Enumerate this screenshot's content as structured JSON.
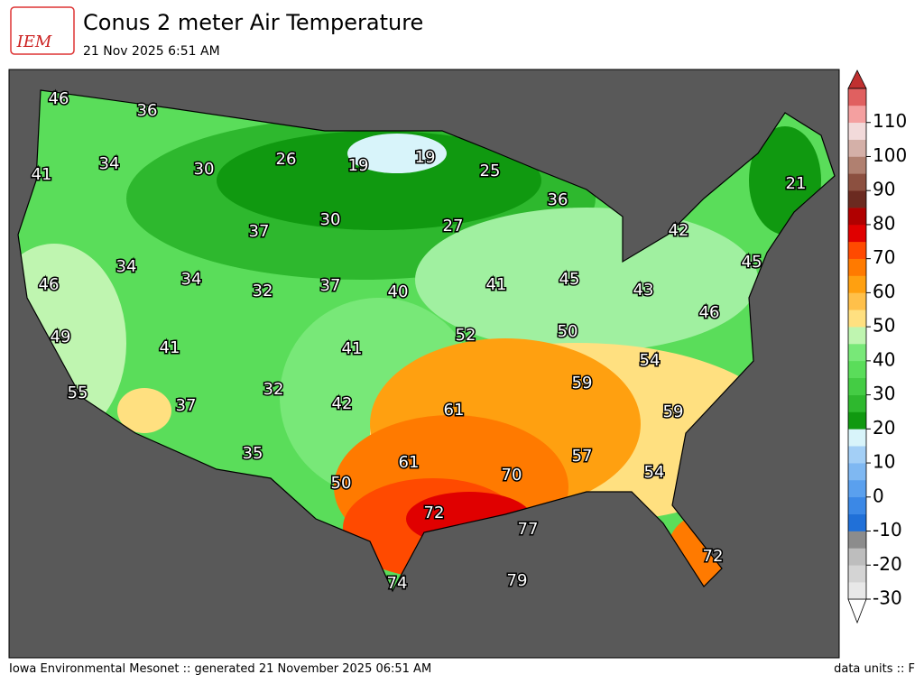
{
  "header": {
    "logo_text": "IEM",
    "title": "Conus 2 meter Air Temperature",
    "subtitle": "21 Nov 2025 6:51 AM"
  },
  "map": {
    "labels": [
      "46",
      "36",
      "41",
      "34",
      "30",
      "26",
      "19",
      "19",
      "25",
      "36",
      "21",
      "37",
      "30",
      "27",
      "42",
      "34",
      "34",
      "46",
      "32",
      "37",
      "40",
      "41",
      "45",
      "43",
      "45",
      "46",
      "49",
      "52",
      "50",
      "41",
      "41",
      "54",
      "55",
      "37",
      "32",
      "42",
      "61",
      "59",
      "59",
      "35",
      "61",
      "57",
      "54",
      "50",
      "70",
      "72",
      "77",
      "72",
      "74",
      "79"
    ]
  },
  "colorbar": {
    "lim": [
      -30,
      120
    ],
    "ticks": [
      -30,
      -20,
      -10,
      0,
      10,
      20,
      30,
      40,
      50,
      60,
      70,
      80,
      90,
      100,
      110
    ],
    "colors": [
      "#e8e8e8",
      "#d4d4d4",
      "#bdbdbd",
      "#8c8c8c",
      "#2070d8",
      "#3b88e6",
      "#5aa0ee",
      "#7fb8f2",
      "#a3cff6",
      "#d8f4fa",
      "#109910",
      "#2eb82e",
      "#44cc44",
      "#5add5a",
      "#78e878",
      "#bff5b0",
      "#ffe080",
      "#ffc04a",
      "#ffa010",
      "#ff7a00",
      "#ff4a00",
      "#e00000",
      "#b00000",
      "#6b2a20",
      "#8c5040",
      "#b08070",
      "#d4b0a8",
      "#f2dada",
      "#f4a0a0",
      "#e06060"
    ]
  },
  "footer": {
    "left": "Iowa Environmental Mesonet :: generated 21 November 2025 06:51 AM",
    "right": "data units :: F"
  }
}
